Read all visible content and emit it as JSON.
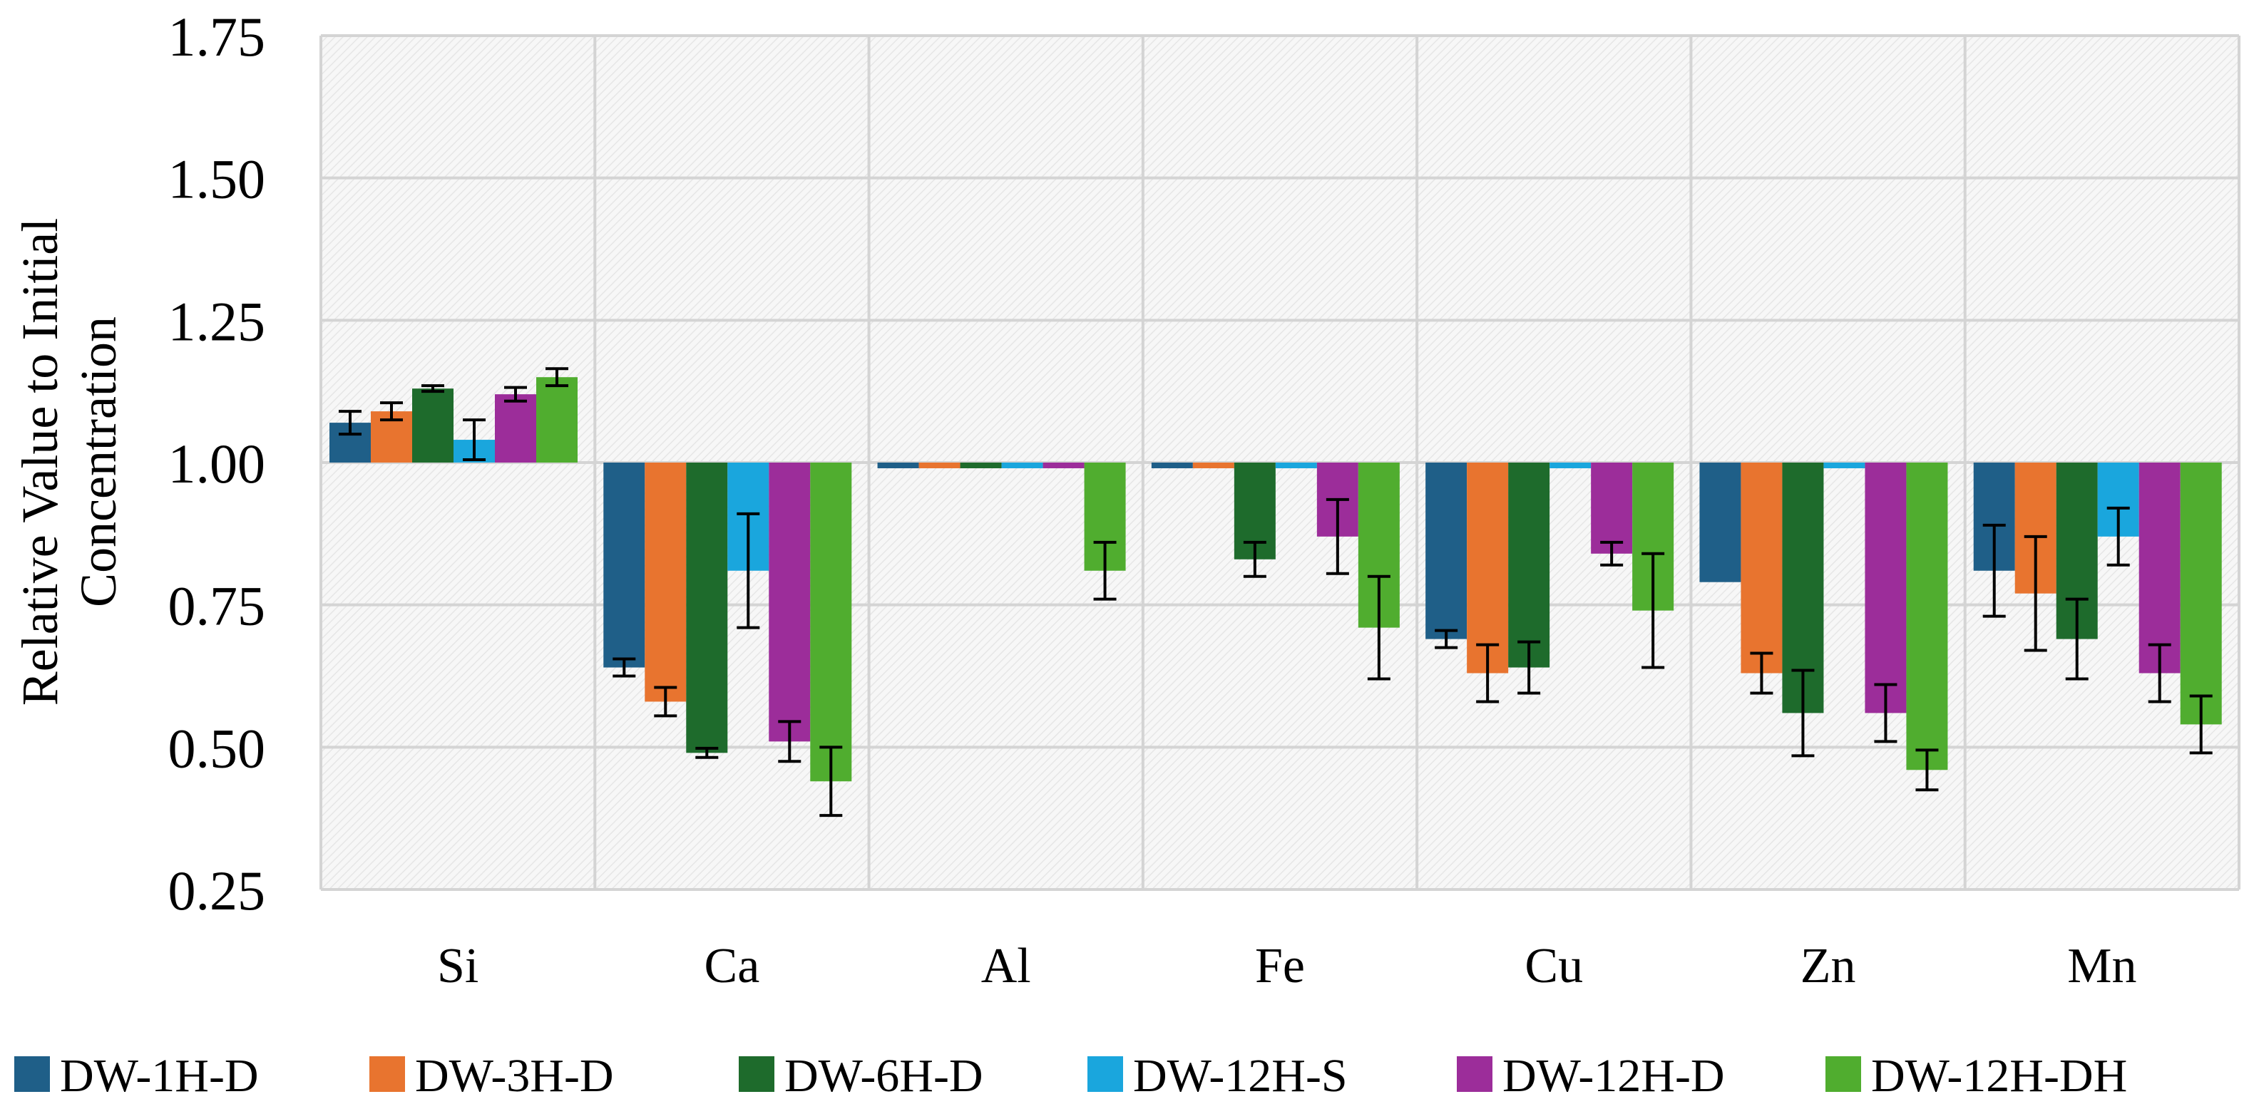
{
  "chart_data": {
    "type": "bar",
    "title": "",
    "xlabel": "",
    "ylabel": "Relative Value to Initial Concentration",
    "ylabel_lines": [
      "Relative Value to Initial",
      "Concentration"
    ],
    "ylim": [
      0.25,
      1.75
    ],
    "yticks": [
      0.25,
      0.5,
      0.75,
      1.0,
      1.25,
      1.5,
      1.75
    ],
    "ytick_labels": [
      "0.25",
      "0.50",
      "0.75",
      "1.00",
      "1.25",
      "1.50",
      "1.75"
    ],
    "baseline": 1.0,
    "grid": true,
    "legend_position": "bottom",
    "categories": [
      "Si",
      "Ca",
      "Al",
      "Fe",
      "Cu",
      "Zn",
      "Mn"
    ],
    "series": [
      {
        "name": "DW-1H-D",
        "color": "#1f5f88",
        "values": [
          1.07,
          0.64,
          0.99,
          0.99,
          0.69,
          0.79,
          0.81
        ],
        "errors": [
          0.02,
          0.015,
          0.0,
          0.0,
          0.015,
          0.0,
          0.08
        ]
      },
      {
        "name": "DW-3H-D",
        "color": "#e8742f",
        "values": [
          1.09,
          0.58,
          0.99,
          0.99,
          0.63,
          0.63,
          0.77
        ],
        "errors": [
          0.015,
          0.025,
          0.0,
          0.0,
          0.05,
          0.035,
          0.1
        ]
      },
      {
        "name": "DW-6H-D",
        "color": "#1e6b2c",
        "values": [
          1.13,
          0.49,
          0.99,
          0.83,
          0.64,
          0.56,
          0.69
        ],
        "errors": [
          0.005,
          0.008,
          0.0,
          0.03,
          0.045,
          0.075,
          0.07
        ]
      },
      {
        "name": "DW-12H-S",
        "color": "#1aa6dd",
        "values": [
          1.04,
          0.81,
          0.99,
          0.99,
          0.99,
          0.99,
          0.87
        ],
        "errors": [
          0.035,
          0.1,
          0.0,
          0.0,
          0.0,
          0.0,
          0.05
        ]
      },
      {
        "name": "DW-12H-D",
        "color": "#9c2d9a",
        "values": [
          1.12,
          0.51,
          0.99,
          0.87,
          0.84,
          0.56,
          0.63
        ],
        "errors": [
          0.012,
          0.035,
          0.0,
          0.065,
          0.02,
          0.05,
          0.05
        ]
      },
      {
        "name": "DW-12H-DH",
        "color": "#50ad2f",
        "values": [
          1.15,
          0.44,
          0.81,
          0.71,
          0.74,
          0.46,
          0.54
        ],
        "errors": [
          0.015,
          0.06,
          0.05,
          0.09,
          0.1,
          0.035,
          0.05
        ]
      }
    ]
  }
}
